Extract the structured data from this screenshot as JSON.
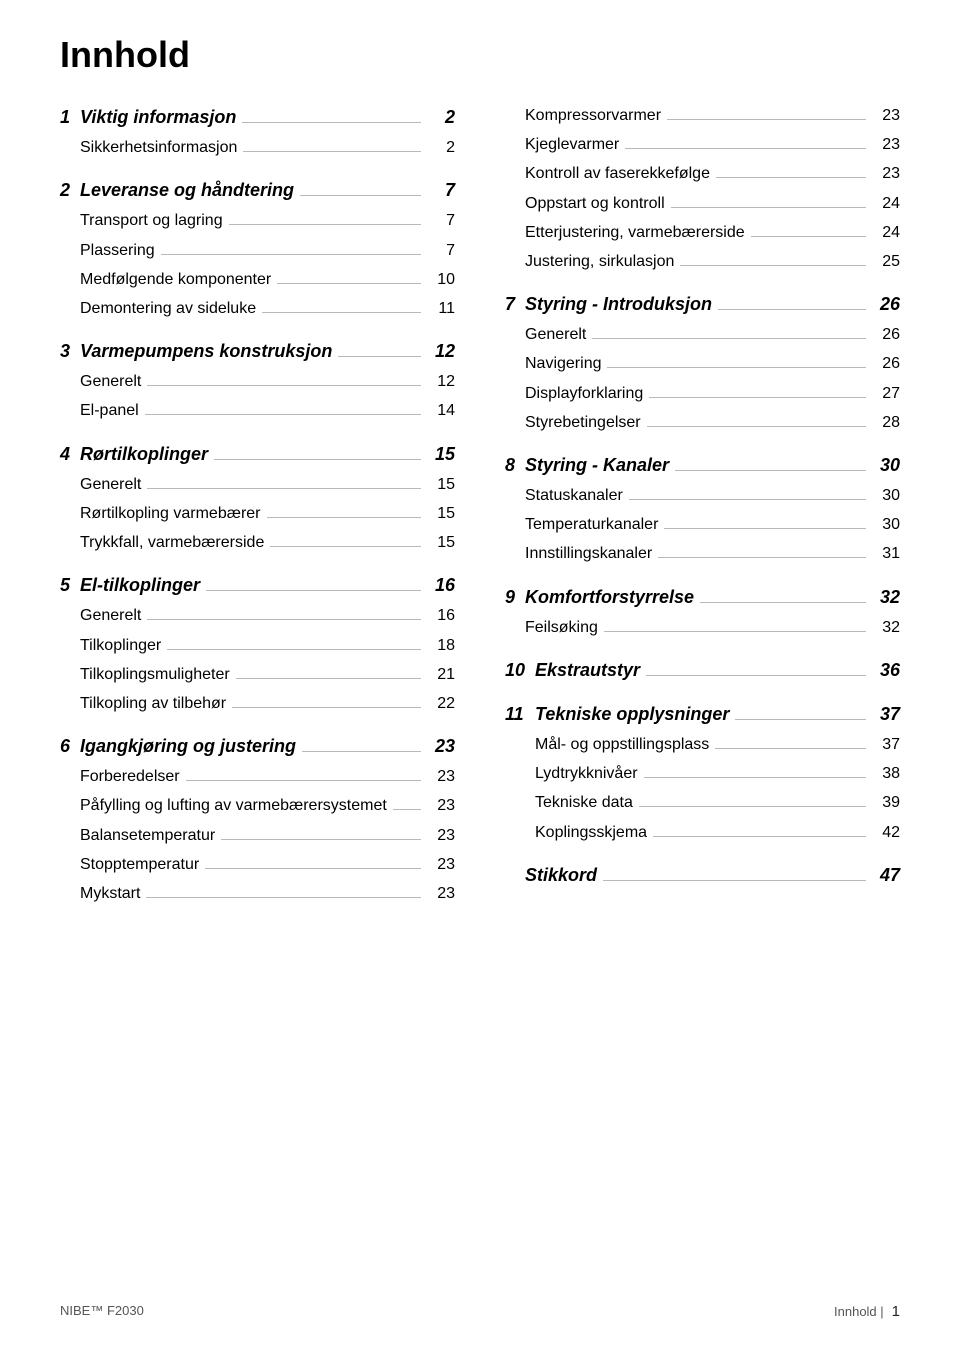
{
  "title": "Innhold",
  "leftSections": [
    {
      "num": "1",
      "heading": "Viktig informasjon",
      "page": "2",
      "items": [
        {
          "label": "Sikkerhetsinformasjon",
          "page": "2"
        }
      ]
    },
    {
      "num": "2",
      "heading": "Leveranse og håndtering",
      "page": "7",
      "items": [
        {
          "label": "Transport og lagring",
          "page": "7"
        },
        {
          "label": "Plassering",
          "page": "7"
        },
        {
          "label": "Medfølgende komponenter",
          "page": "10"
        },
        {
          "label": "Demontering av sideluke",
          "page": "11"
        }
      ]
    },
    {
      "num": "3",
      "heading": "Varmepumpens konstruksjon",
      "page": "12",
      "items": [
        {
          "label": "Generelt",
          "page": "12"
        },
        {
          "label": "El-panel",
          "page": "14"
        }
      ]
    },
    {
      "num": "4",
      "heading": "Rørtilkoplinger",
      "page": "15",
      "items": [
        {
          "label": "Generelt",
          "page": "15"
        },
        {
          "label": "Rørtilkopling varmebærer",
          "page": "15"
        },
        {
          "label": "Trykkfall, varmebærerside",
          "page": "15"
        }
      ]
    },
    {
      "num": "5",
      "heading": "El-tilkoplinger",
      "page": "16",
      "items": [
        {
          "label": "Generelt",
          "page": "16"
        },
        {
          "label": "Tilkoplinger",
          "page": "18"
        },
        {
          "label": "Tilkoplingsmuligheter",
          "page": "21"
        },
        {
          "label": "Tilkopling av tilbehør",
          "page": "22"
        }
      ]
    },
    {
      "num": "6",
      "heading": "Igangkjøring og justering",
      "page": "23",
      "items": [
        {
          "label": "Forberedelser",
          "page": "23"
        },
        {
          "label": "Påfylling og lufting av varmebærersystemet",
          "page": "23"
        },
        {
          "label": "Balansetemperatur",
          "page": "23"
        },
        {
          "label": "Stopptemperatur",
          "page": "23"
        },
        {
          "label": "Mykstart",
          "page": "23"
        }
      ]
    }
  ],
  "rightTopItems": [
    {
      "label": "Kompressorvarmer",
      "page": "23"
    },
    {
      "label": "Kjeglevarmer",
      "page": "23"
    },
    {
      "label": "Kontroll av faserekkefølge",
      "page": "23"
    },
    {
      "label": "Oppstart og kontroll",
      "page": "24"
    },
    {
      "label": "Etterjustering, varmebærerside",
      "page": "24"
    },
    {
      "label": "Justering, sirkulasjon",
      "page": "25"
    }
  ],
  "rightSections": [
    {
      "num": "7",
      "heading": "Styring - Introduksjon",
      "page": "26",
      "items": [
        {
          "label": "Generelt",
          "page": "26"
        },
        {
          "label": "Navigering",
          "page": "26"
        },
        {
          "label": "Displayforklaring",
          "page": "27"
        },
        {
          "label": "Styrebetingelser",
          "page": "28"
        }
      ]
    },
    {
      "num": "8",
      "heading": "Styring - Kanaler",
      "page": "30",
      "items": [
        {
          "label": "Statuskanaler",
          "page": "30"
        },
        {
          "label": "Temperaturkanaler",
          "page": "30"
        },
        {
          "label": "Innstillingskanaler",
          "page": "31"
        }
      ]
    },
    {
      "num": "9",
      "heading": "Komfortforstyrrelse",
      "page": "32",
      "items": [
        {
          "label": "Feilsøking",
          "page": "32"
        }
      ]
    },
    {
      "num": "10",
      "heading": "Ekstrautstyr",
      "page": "36",
      "items": []
    },
    {
      "num": "11",
      "heading": "Tekniske opplysninger",
      "page": "37",
      "items": [
        {
          "label": "Mål- og oppstillingsplass",
          "page": "37"
        },
        {
          "label": "Lydtrykknivåer",
          "page": "38"
        },
        {
          "label": "Tekniske data",
          "page": "39"
        },
        {
          "label": "Koplingsskjema",
          "page": "42"
        }
      ]
    },
    {
      "num": "",
      "heading": "Stikkord",
      "page": "47",
      "items": []
    }
  ],
  "footer": {
    "left": "NIBE™ F2030",
    "rightLabel": "Innhold |",
    "pageNum": "1"
  }
}
